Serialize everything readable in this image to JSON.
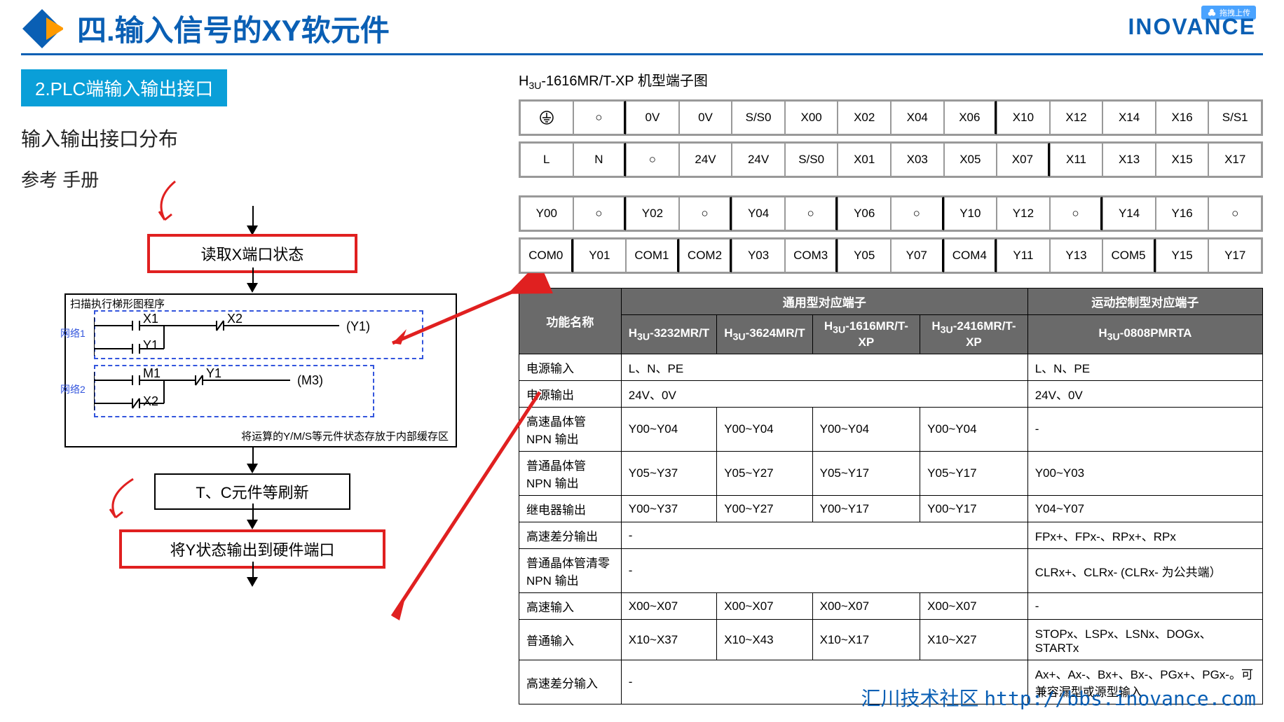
{
  "header": {
    "title_prefix": "四.输入信号的",
    "title_highlight": "XY",
    "title_suffix": "软元件",
    "brand": "INOVANCE",
    "upload_badge": "拖拽上传"
  },
  "colors": {
    "primary": "#0a5fb4",
    "badge_bg": "#0a9fd8",
    "red": "#e02020",
    "table_header": "#6a6a6a",
    "orange": "#ff9a00"
  },
  "left": {
    "section_badge": "2.PLC端输入输出接口",
    "subtitle": "输入输出接口分布",
    "manual": "参考 手册",
    "flow": {
      "box1": "读取X端口状态",
      "ladder_title": "扫描执行梯形图程序",
      "net1": "网络1",
      "net2": "网络2",
      "x1": "X1",
      "x2": "X2",
      "y1_contact": "Y1",
      "y1_coil": "(Y1)",
      "m1": "M1",
      "y1b": "Y1",
      "m3_coil": "(M3)",
      "x2b": "X2",
      "ladder_note": "将运算的Y/M/S等元件状态存放于内部缓存区",
      "box2": "T、C元件等刷新",
      "box3": "将Y状态输出到硬件端口"
    }
  },
  "right": {
    "terminal_title_prefix": "H",
    "terminal_title_sub": "3U",
    "terminal_title_suffix": "-1616MR/T-XP 机型端子图",
    "row1": [
      "⏚",
      "○",
      "0V",
      "0V",
      "S/S0",
      "X00",
      "X02",
      "X04",
      "X06",
      "X10",
      "X12",
      "X14",
      "X16",
      "S/S1"
    ],
    "row2": [
      "L",
      "N",
      "○",
      "24V",
      "24V",
      "S/S0",
      "X01",
      "X03",
      "X05",
      "X07",
      "X11",
      "X13",
      "X15",
      "X17"
    ],
    "row3": [
      "Y00",
      "○",
      "Y02",
      "○",
      "Y04",
      "○",
      "Y06",
      "○",
      "Y10",
      "Y12",
      "○",
      "Y14",
      "Y16",
      "○"
    ],
    "row4": [
      "COM0",
      "Y01",
      "COM1",
      "COM2",
      "Y03",
      "COM3",
      "Y05",
      "Y07",
      "COM4",
      "Y11",
      "Y13",
      "COM5",
      "Y15",
      "Y17"
    ],
    "table": {
      "header_func": "功能名称",
      "header_general": "通用型对应端子",
      "header_motion": "运动控制型对应端子",
      "sub_headers": [
        "H₃ᵤ-3232MR/T",
        "H₃ᵤ-3624MR/T",
        "H₃ᵤ-1616MR/T-XP",
        "H₃ᵤ-2416MR/T-XP",
        "H₃ᵤ-0808PMRTA"
      ],
      "rows": [
        {
          "name": "电源输入",
          "cells": [
            "L、N、PE",
            "",
            "",
            "",
            "L、N、PE"
          ],
          "colspan": 4
        },
        {
          "name": "电源输出",
          "cells": [
            "24V、0V",
            "",
            "",
            "",
            "24V、0V"
          ],
          "colspan": 4
        },
        {
          "name": "高速晶体管 NPN 输出",
          "cells": [
            "Y00~Y04",
            "Y00~Y04",
            "Y00~Y04",
            "Y00~Y04",
            "-"
          ]
        },
        {
          "name": "普通晶体管 NPN 输出",
          "cells": [
            "Y05~Y37",
            "Y05~Y27",
            "Y05~Y17",
            "Y05~Y17",
            "Y00~Y03"
          ]
        },
        {
          "name": "继电器输出",
          "cells": [
            "Y00~Y37",
            "Y00~Y27",
            "Y00~Y17",
            "Y00~Y17",
            "Y04~Y07"
          ]
        },
        {
          "name": "高速差分输出",
          "cells": [
            "-",
            "",
            "",
            "",
            "FPx+、FPx-、RPx+、RPx"
          ],
          "colspan": 4
        },
        {
          "name": "普通晶体管清零 NPN 输出",
          "cells": [
            "-",
            "",
            "",
            "",
            "CLRx+、CLRx- (CLRx- 为公共端）"
          ],
          "colspan": 4
        },
        {
          "name": "高速输入",
          "cells": [
            "X00~X07",
            "X00~X07",
            "X00~X07",
            "X00~X07",
            "-"
          ]
        },
        {
          "name": "普通输入",
          "cells": [
            "X10~X37",
            "X10~X43",
            "X10~X17",
            "X10~X27",
            "STOPx、LSPx、LSNx、DOGx、STARTx"
          ]
        },
        {
          "name": "高速差分输入",
          "cells": [
            "-",
            "",
            "",
            "",
            "Ax+、Ax-、Bx+、Bx-、PGx+、PGx-。可兼容漏型或源型输入"
          ],
          "colspan": 4
        }
      ]
    }
  },
  "footer": {
    "community": "汇川技术社区 ",
    "url": "http://bbs.inovance.com"
  }
}
